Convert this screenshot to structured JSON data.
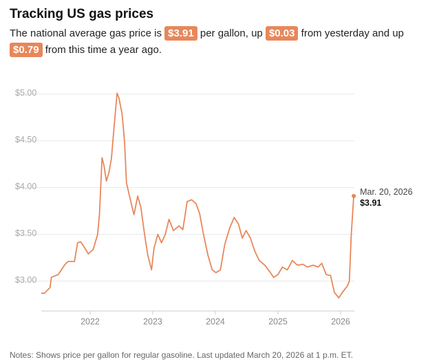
{
  "chart_data": {
    "type": "line",
    "title": "Tracking US gas prices",
    "subtitle": [
      {
        "text": "The national average gas price is"
      },
      {
        "text": "$3.91",
        "highlight": true
      },
      {
        "text": "per gallon, up"
      },
      {
        "text": "$0.03",
        "highlight": true
      },
      {
        "text": "from yesterday and up"
      },
      {
        "text": "$0.79",
        "highlight": true
      },
      {
        "text": "from this time a year ago."
      }
    ],
    "color": "#e8875a",
    "x": [
      2021.22,
      2021.27,
      2021.36,
      2021.38,
      2021.49,
      2021.6,
      2021.65,
      2021.75,
      2021.8,
      2021.85,
      2021.9,
      2021.97,
      2022.05,
      2022.12,
      2022.15,
      2022.19,
      2022.22,
      2022.26,
      2022.3,
      2022.34,
      2022.38,
      2022.43,
      2022.46,
      2022.51,
      2022.55,
      2022.58,
      2022.65,
      2022.7,
      2022.76,
      2022.81,
      2022.87,
      2022.92,
      2022.98,
      2023.02,
      2023.08,
      2023.14,
      2023.2,
      2023.26,
      2023.33,
      2023.42,
      2023.48,
      2023.55,
      2023.62,
      2023.69,
      2023.75,
      2023.81,
      2023.88,
      2023.95,
      2024.01,
      2024.08,
      2024.15,
      2024.23,
      2024.3,
      2024.37,
      2024.43,
      2024.49,
      2024.56,
      2024.63,
      2024.7,
      2024.79,
      2024.87,
      2024.93,
      2025.0,
      2025.07,
      2025.15,
      2025.23,
      2025.31,
      2025.4,
      2025.47,
      2025.56,
      2025.64,
      2025.7,
      2025.77,
      2025.84,
      2025.9,
      2025.97,
      2026.03,
      2026.11,
      2026.14,
      2026.17,
      2026.21
    ],
    "values": [
      2.87,
      2.87,
      2.93,
      3.04,
      3.07,
      3.18,
      3.21,
      3.21,
      3.41,
      3.42,
      3.37,
      3.29,
      3.34,
      3.5,
      3.72,
      4.32,
      4.24,
      4.07,
      4.16,
      4.31,
      4.63,
      5.01,
      4.96,
      4.79,
      4.49,
      4.05,
      3.85,
      3.71,
      3.91,
      3.79,
      3.5,
      3.28,
      3.12,
      3.35,
      3.5,
      3.41,
      3.5,
      3.66,
      3.54,
      3.59,
      3.55,
      3.85,
      3.87,
      3.83,
      3.72,
      3.5,
      3.28,
      3.12,
      3.09,
      3.12,
      3.39,
      3.57,
      3.68,
      3.61,
      3.46,
      3.54,
      3.46,
      3.32,
      3.22,
      3.17,
      3.1,
      3.04,
      3.07,
      3.15,
      3.12,
      3.22,
      3.17,
      3.18,
      3.15,
      3.17,
      3.15,
      3.19,
      3.07,
      3.06,
      2.88,
      2.82,
      2.88,
      2.95,
      3.0,
      3.5,
      3.91
    ],
    "xlim": [
      2021.22,
      2026.22
    ],
    "xticks": [
      2022,
      2023,
      2024,
      2025,
      2026
    ],
    "ylim": [
      2.68,
      5.16
    ],
    "yticks": [
      {
        "value": 3,
        "label": "$3.00"
      },
      {
        "value": 3.5,
        "label": "$3.50"
      },
      {
        "value": 4,
        "label": "$4.00"
      },
      {
        "value": 4.5,
        "label": "$4.50"
      },
      {
        "value": 5,
        "label": "$5.00"
      }
    ],
    "grid": true,
    "annotation": {
      "date": "Mar. 20, 2026",
      "label": "$3.91"
    },
    "note": "Notes: Shows price per gallon for regular gasoline. Last updated March 20, 2026 at 1 p.m. ET."
  }
}
